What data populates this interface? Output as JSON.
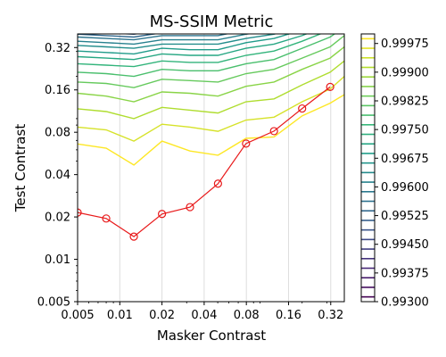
{
  "chart_data": {
    "type": "line",
    "title": "MS-SSIM Metric",
    "xlabel": "Masker Contrast",
    "ylabel": "Test Contrast",
    "xscale": "log",
    "yscale": "log",
    "xlim": [
      0.005,
      0.4
    ],
    "ylim": [
      0.005,
      0.4
    ],
    "x_ticks": [
      {
        "value": 0.005,
        "label": "0.005"
      },
      {
        "value": 0.01,
        "label": "0.01"
      },
      {
        "value": 0.02,
        "label": "0.02"
      },
      {
        "value": 0.04,
        "label": "0.04"
      },
      {
        "value": 0.08,
        "label": "0.08"
      },
      {
        "value": 0.16,
        "label": "0.16"
      },
      {
        "value": 0.32,
        "label": "0.32"
      }
    ],
    "y_ticks": [
      {
        "value": 0.005,
        "label": "0.005"
      },
      {
        "value": 0.01,
        "label": "0.01"
      },
      {
        "value": 0.02,
        "label": "0.02"
      },
      {
        "value": 0.04,
        "label": "0.04"
      },
      {
        "value": 0.08,
        "label": "0.08"
      },
      {
        "value": 0.16,
        "label": "0.16"
      },
      {
        "value": 0.32,
        "label": "0.32"
      }
    ],
    "grid": "vertical",
    "series": [
      {
        "color": "#e8191a",
        "marker": "open-circle",
        "x": [
          0.005,
          0.008,
          0.0126,
          0.02,
          0.0317,
          0.0502,
          0.0796,
          0.126,
          0.2,
          0.317
        ],
        "y": [
          0.0215,
          0.0195,
          0.0145,
          0.021,
          0.0235,
          0.0345,
          0.0665,
          0.0815,
          0.118,
          0.168
        ]
      }
    ],
    "contours": {
      "colormap": "viridis",
      "x": [
        0.005,
        0.008,
        0.0126,
        0.02,
        0.0317,
        0.0502,
        0.0796,
        0.126,
        0.2,
        0.317,
        0.4
      ],
      "levels_log10_y": [
        [
          -1.18,
          -1.21,
          -1.33,
          -1.16,
          -1.23,
          -1.26,
          -1.14,
          -1.13,
          -0.98,
          -0.89,
          -0.83
        ],
        [
          -1.06,
          -1.08,
          -1.16,
          -1.04,
          -1.06,
          -1.09,
          -1.01,
          -0.99,
          -0.88,
          -0.79,
          -0.7
        ],
        [
          -0.93,
          -0.95,
          -1.0,
          -0.92,
          -0.94,
          -0.96,
          -0.88,
          -0.86,
          -0.76,
          -0.67,
          -0.59
        ],
        [
          -0.82,
          -0.84,
          -0.88,
          -0.81,
          -0.82,
          -0.84,
          -0.77,
          -0.74,
          -0.65,
          -0.57,
          -0.49
        ],
        [
          -0.74,
          -0.75,
          -0.78,
          -0.72,
          -0.73,
          -0.74,
          -0.68,
          -0.65,
          -0.57,
          -0.49,
          -0.41
        ],
        [
          -0.67,
          -0.68,
          -0.7,
          -0.65,
          -0.66,
          -0.66,
          -0.61,
          -0.58,
          -0.5,
          -0.42,
          -0.35
        ],
        [
          -0.61,
          -0.62,
          -0.63,
          -0.59,
          -0.6,
          -0.6,
          -0.55,
          -0.52,
          -0.45,
          -0.37,
          -0.3
        ],
        [
          -0.56,
          -0.57,
          -0.58,
          -0.54,
          -0.55,
          -0.55,
          -0.5,
          -0.47,
          -0.41,
          -0.33,
          -0.26
        ],
        [
          -0.52,
          -0.53,
          -0.54,
          -0.5,
          -0.51,
          -0.51,
          -0.46,
          -0.43,
          -0.37,
          -0.3,
          -0.23
        ],
        [
          -0.48,
          -0.49,
          -0.5,
          -0.47,
          -0.47,
          -0.47,
          -0.43,
          -0.4,
          -0.34,
          -0.27,
          -0.2
        ],
        [
          -0.45,
          -0.46,
          -0.47,
          -0.44,
          -0.44,
          -0.44,
          -0.4,
          -0.37,
          -0.31,
          -0.25,
          -0.18
        ],
        [
          -0.42,
          -0.43,
          -0.44,
          -0.41,
          -0.41,
          -0.41,
          -0.37,
          -0.34,
          -0.29,
          -0.23,
          -0.16
        ],
        [
          -0.4,
          -0.41,
          -0.42,
          -0.39,
          -0.39,
          -0.39,
          -0.35,
          -0.32,
          -0.27,
          -0.21,
          -0.14
        ],
        [
          -0.38,
          -0.39,
          -0.4,
          -0.37,
          -0.37,
          -0.37,
          -0.33,
          -0.3,
          -0.25,
          -0.19,
          -0.12
        ],
        [
          -0.36,
          -0.37,
          -0.38,
          -0.35,
          -0.35,
          -0.35,
          -0.31,
          -0.28,
          -0.23,
          -0.17,
          -0.1
        ],
        [
          -0.34,
          -0.35,
          -0.36,
          -0.33,
          -0.33,
          -0.33,
          -0.29,
          -0.26,
          -0.21,
          -0.15,
          -0.08
        ],
        [
          -0.32,
          -0.33,
          -0.34,
          -0.31,
          -0.31,
          -0.31,
          -0.27,
          -0.24,
          -0.19,
          -0.13,
          -0.06
        ],
        [
          -0.3,
          -0.31,
          -0.32,
          -0.29,
          -0.29,
          -0.29,
          -0.25,
          -0.22,
          -0.17,
          -0.11,
          -0.04
        ],
        [
          -0.28,
          -0.29,
          -0.3,
          -0.27,
          -0.27,
          -0.27,
          -0.23,
          -0.2,
          -0.15,
          -0.09,
          -0.02
        ],
        [
          -0.26,
          -0.27,
          -0.28,
          -0.25,
          -0.25,
          -0.25,
          -0.21,
          -0.18,
          -0.13,
          -0.07,
          -0.01
        ]
      ]
    },
    "colorbar": {
      "colormap": "viridis",
      "min": 0.993,
      "max": 1.0,
      "ticks": [
        {
          "value": 0.99975,
          "label": "0.99975"
        },
        {
          "value": 0.999,
          "label": "0.99900"
        },
        {
          "value": 0.99825,
          "label": "0.99825"
        },
        {
          "value": 0.9975,
          "label": "0.99750"
        },
        {
          "value": 0.99675,
          "label": "0.99675"
        },
        {
          "value": 0.996,
          "label": "0.99600"
        },
        {
          "value": 0.99525,
          "label": "0.99525"
        },
        {
          "value": 0.9945,
          "label": "0.99450"
        },
        {
          "value": 0.99375,
          "label": "0.99375"
        },
        {
          "value": 0.993,
          "label": "0.99300"
        }
      ]
    }
  }
}
